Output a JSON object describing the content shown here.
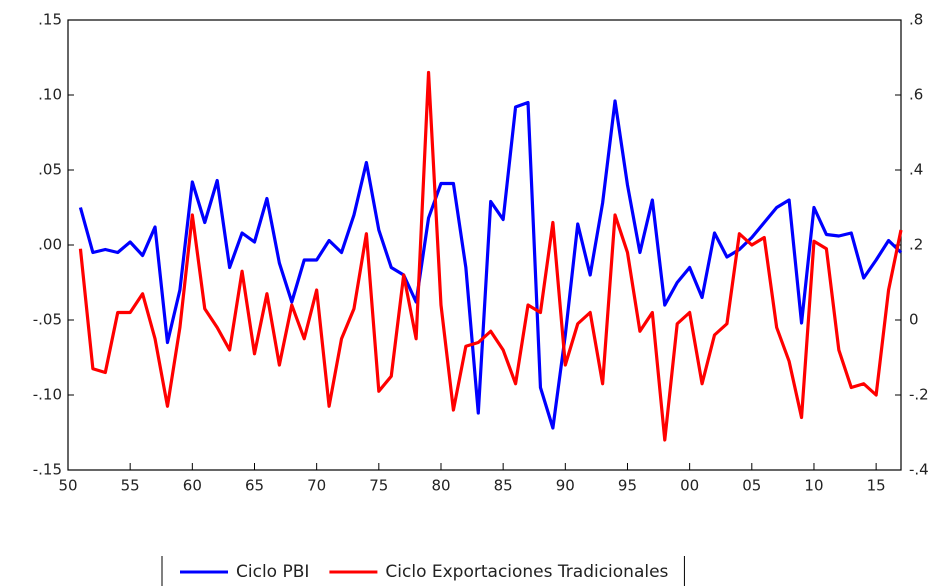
{
  "chart_data": {
    "type": "line",
    "x": [
      1951,
      1952,
      1953,
      1954,
      1955,
      1956,
      1957,
      1958,
      1959,
      1960,
      1961,
      1962,
      1963,
      1964,
      1965,
      1966,
      1967,
      1968,
      1969,
      1970,
      1971,
      1972,
      1973,
      1974,
      1975,
      1976,
      1977,
      1978,
      1979,
      1980,
      1981,
      1982,
      1983,
      1984,
      1985,
      1986,
      1987,
      1988,
      1989,
      1990,
      1991,
      1992,
      1993,
      1994,
      1995,
      1996,
      1997,
      1998,
      1999,
      2000,
      2001,
      2002,
      2003,
      2004,
      2005,
      2006,
      2007,
      2008,
      2009,
      2010,
      2011,
      2012,
      2013,
      2014,
      2015,
      2016,
      2017
    ],
    "xlim": [
      1950,
      2017
    ],
    "xticks": [
      {
        "value": 1950,
        "label": "50"
      },
      {
        "value": 1955,
        "label": "55"
      },
      {
        "value": 1960,
        "label": "60"
      },
      {
        "value": 1965,
        "label": "65"
      },
      {
        "value": 1970,
        "label": "70"
      },
      {
        "value": 1975,
        "label": "75"
      },
      {
        "value": 1980,
        "label": "80"
      },
      {
        "value": 1985,
        "label": "85"
      },
      {
        "value": 1990,
        "label": "90"
      },
      {
        "value": 1995,
        "label": "95"
      },
      {
        "value": 2000,
        "label": "00"
      },
      {
        "value": 2005,
        "label": "05"
      },
      {
        "value": 2010,
        "label": "10"
      },
      {
        "value": 2015,
        "label": "15"
      }
    ],
    "ylim": [
      -0.15,
      0.15
    ],
    "yticks": [
      {
        "value": -0.15,
        "label": "-.15"
      },
      {
        "value": -0.1,
        "label": "-.10"
      },
      {
        "value": -0.05,
        "label": "-.05"
      },
      {
        "value": 0,
        "label": ".00"
      },
      {
        "value": 0.05,
        "label": ".05"
      },
      {
        "value": 0.1,
        "label": ".10"
      },
      {
        "value": 0.15,
        "label": ".15"
      }
    ],
    "y2lim": [
      -0.4,
      0.8
    ],
    "y2ticks": [
      {
        "value": -0.4,
        "label": "-.4"
      },
      {
        "value": -0.2,
        "label": "-.2"
      },
      0,
      {
        "value": 0.2,
        "label": ".2"
      },
      {
        "value": 0.4,
        "label": ".4"
      },
      {
        "value": 0.6,
        "label": ".6"
      },
      {
        "value": 0.8,
        "label": ".8"
      }
    ],
    "series": [
      {
        "name": "Ciclo PBI",
        "color": "#0000ff",
        "axis": "y",
        "values": [
          0.025,
          -0.005,
          -0.003,
          -0.005,
          0.002,
          -0.007,
          0.012,
          -0.065,
          -0.03,
          0.042,
          0.015,
          0.043,
          -0.015,
          0.008,
          0.002,
          0.031,
          -0.012,
          -0.038,
          -0.01,
          -0.01,
          0.003,
          -0.005,
          0.02,
          0.055,
          0.01,
          -0.015,
          -0.02,
          -0.038,
          0.018,
          0.041,
          0.041,
          -0.015,
          -0.112,
          0.029,
          0.017,
          0.092,
          0.095,
          -0.095,
          -0.122,
          -0.06,
          0.014,
          -0.02,
          0.028,
          0.096,
          0.04,
          -0.005,
          0.03,
          -0.04,
          -0.025,
          -0.015,
          -0.035,
          0.008,
          -0.008,
          -0.003,
          0.005,
          0.015,
          0.025,
          0.03,
          -0.052,
          0.025,
          0.007,
          0.006,
          0.008,
          -0.022,
          -0.01,
          0.003,
          -0.005
        ]
      },
      {
        "name": "Ciclo Exportaciones Tradicionales",
        "color": "#ff0000",
        "axis": "y2",
        "values": [
          0.19,
          -0.13,
          -0.14,
          0.02,
          0.02,
          0.07,
          -0.05,
          -0.23,
          -0.02,
          0.28,
          0.03,
          -0.02,
          -0.08,
          0.13,
          -0.09,
          0.07,
          -0.12,
          0.04,
          -0.05,
          0.08,
          -0.23,
          -0.05,
          0.03,
          0.23,
          -0.19,
          -0.15,
          0.12,
          -0.05,
          0.66,
          0.04,
          -0.24,
          -0.07,
          -0.06,
          -0.03,
          -0.08,
          -0.17,
          0.04,
          0.02,
          0.26,
          -0.12,
          -0.01,
          0.02,
          -0.17,
          0.28,
          0.18,
          -0.03,
          0.02,
          -0.32,
          -0.01,
          0.02,
          -0.17,
          -0.04,
          -0.01,
          0.23,
          0.2,
          0.22,
          -0.02,
          -0.11,
          -0.26,
          0.21,
          0.19,
          -0.08,
          -0.18,
          -0.17,
          -0.2,
          0.08,
          0.24
        ]
      }
    ]
  }
}
